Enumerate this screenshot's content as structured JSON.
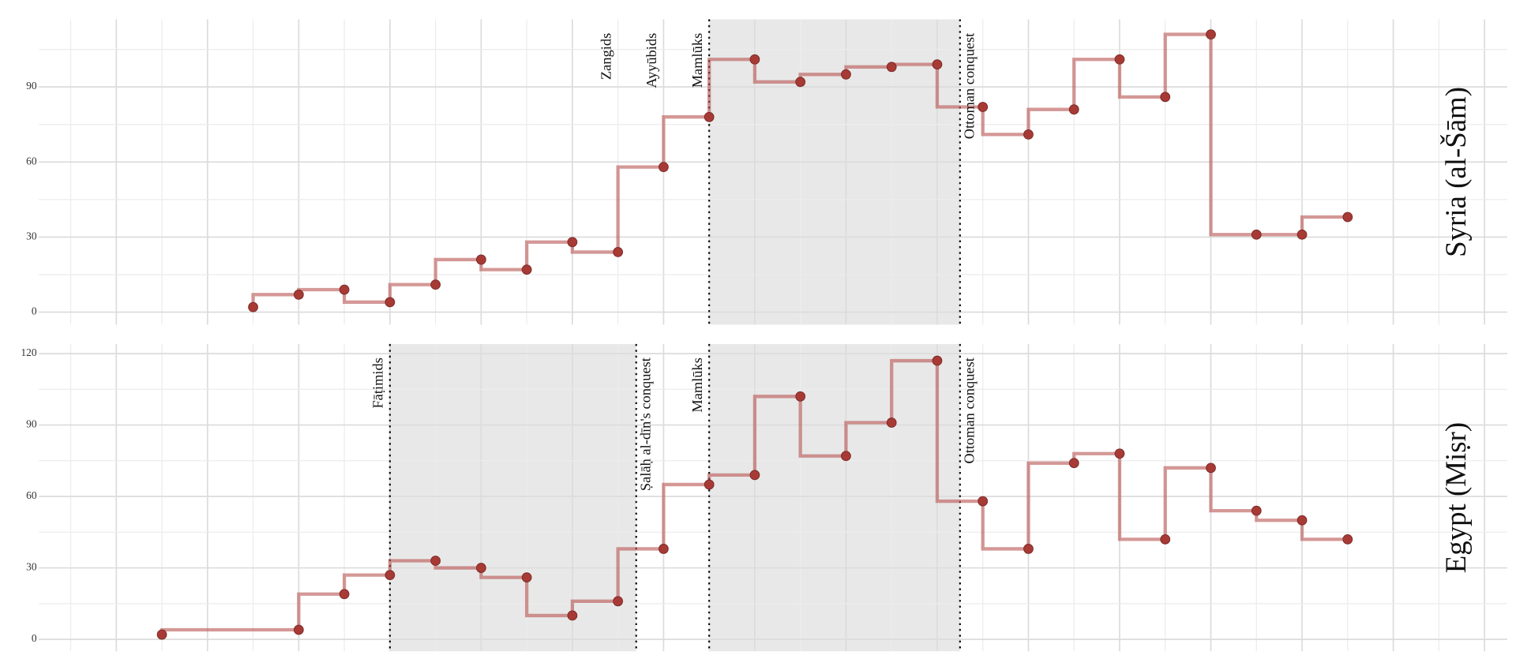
{
  "chart_data": [
    {
      "type": "step",
      "facet_label": "Syria (al-Šām)",
      "x": [
        4,
        5,
        6,
        7,
        8,
        9,
        10,
        11,
        12,
        13,
        14,
        15,
        16,
        17,
        18,
        19,
        20,
        21,
        22,
        23,
        24,
        25,
        26,
        27,
        28
      ],
      "values": [
        2,
        7,
        9,
        4,
        11,
        21,
        17,
        28,
        24,
        58,
        78,
        101,
        92,
        95,
        98,
        99,
        82,
        71,
        81,
        101,
        86,
        111,
        31,
        31,
        38
      ],
      "color": "#b85450",
      "point_color": "#a83a36",
      "xlim": [
        -0.7,
        31.5
      ],
      "ylim": [
        -5,
        117
      ],
      "yticks": [
        0,
        30,
        60,
        90
      ],
      "xgrid": [
        1,
        3,
        5,
        7,
        9,
        11,
        13,
        15,
        17,
        19,
        21,
        23,
        25,
        27,
        29,
        31
      ],
      "shaded": [
        [
          14,
          19.5
        ]
      ],
      "annotations": [
        {
          "label": "Zangids",
          "x": 12,
          "side": "left"
        },
        {
          "label": "Ayyūbids",
          "x": 13,
          "side": "left"
        },
        {
          "label": "Mamlūks",
          "x": 14,
          "side": "left"
        },
        {
          "label": "Ottoman conquest",
          "x": 19.5,
          "side": "right"
        }
      ],
      "lines_at": [
        14,
        19.5
      ]
    },
    {
      "type": "step",
      "facet_label": "Egypt (Miṣr)",
      "x": [
        2,
        5,
        6,
        7,
        8,
        9,
        10,
        11,
        12,
        13,
        14,
        15,
        16,
        17,
        18,
        19,
        20,
        21,
        22,
        23,
        24,
        25,
        26,
        27,
        28
      ],
      "values": [
        2,
        4,
        19,
        27,
        33,
        30,
        26,
        10,
        16,
        38,
        65,
        69,
        102,
        77,
        91,
        117,
        58,
        38,
        74,
        78,
        42,
        72,
        54,
        50,
        42
      ],
      "color": "#b85450",
      "point_color": "#a83a36",
      "xlim": [
        -0.7,
        31.5
      ],
      "ylim": [
        -5,
        124
      ],
      "yticks": [
        0,
        30,
        60,
        90,
        120
      ],
      "xgrid": [
        1,
        3,
        5,
        7,
        9,
        11,
        13,
        15,
        17,
        19,
        21,
        23,
        25,
        27,
        29,
        31
      ],
      "shaded": [
        [
          7,
          12.4
        ],
        [
          14,
          19.5
        ]
      ],
      "annotations": [
        {
          "label": "Fāṭimids",
          "x": 7,
          "side": "left"
        },
        {
          "label": "Ṣalāḥ al-dīn's conquest",
          "x": 12.4,
          "side": "right"
        },
        {
          "label": "Mamlūks",
          "x": 14,
          "side": "left"
        },
        {
          "label": "Ottoman conquest",
          "x": 19.5,
          "side": "right"
        }
      ],
      "lines_at": [
        7,
        12.4,
        14,
        19.5
      ]
    }
  ]
}
